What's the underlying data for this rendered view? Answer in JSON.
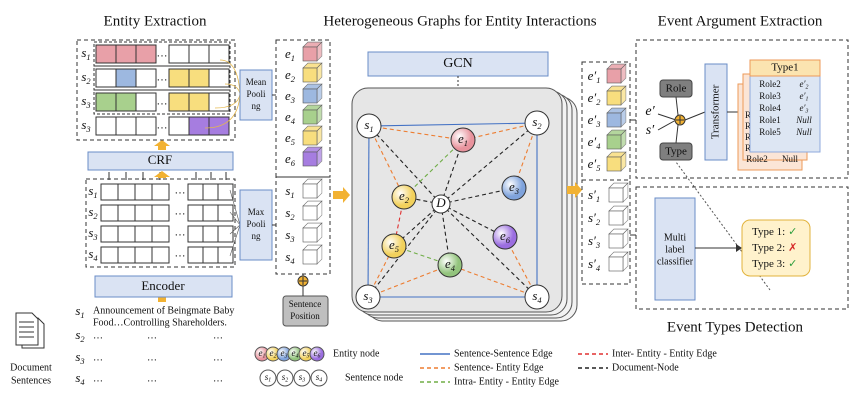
{
  "entity_extraction": {
    "title": "Entity Extraction",
    "pooled_rows": [
      {
        "v": "s",
        "i": "1"
      },
      {
        "v": "s",
        "i": "2"
      },
      {
        "v": "s",
        "i": "3"
      },
      {
        "v": "s",
        "i": "3"
      }
    ],
    "token_rows": [
      {
        "v": "s",
        "i": "1"
      },
      {
        "v": "s",
        "i": "2"
      },
      {
        "v": "s",
        "i": "3"
      },
      {
        "v": "s",
        "i": "4"
      }
    ],
    "ellipsis": "…",
    "crf": "CRF",
    "encoder": "Encoder",
    "mean_pooling": [
      "Mean",
      "Pooli",
      "ng"
    ],
    "max_pooling": [
      "Max",
      "Pooli",
      "ng"
    ]
  },
  "document": {
    "label": [
      "Document",
      "Sentences"
    ],
    "sentences": [
      {
        "id": {
          "v": "s",
          "i": "1"
        },
        "text": [
          "Announcement of Beingmate Baby",
          "Food…Controlling Shareholders."
        ]
      },
      {
        "id": {
          "v": "s",
          "i": "2"
        },
        "text": [
          "…",
          "…",
          "…"
        ]
      },
      {
        "id": {
          "v": "s",
          "i": "3"
        },
        "text": [
          "…",
          "…",
          "…"
        ]
      },
      {
        "id": {
          "v": "s",
          "i": "4"
        },
        "text": [
          "…",
          "…",
          "…"
        ]
      }
    ]
  },
  "embeddings": {
    "entities": [
      {
        "v": "e",
        "i": "1"
      },
      {
        "v": "e",
        "i": "2"
      },
      {
        "v": "e",
        "i": "3"
      },
      {
        "v": "e",
        "i": "4"
      },
      {
        "v": "e",
        "i": "5"
      },
      {
        "v": "e",
        "i": "6"
      }
    ],
    "sentences": [
      {
        "v": "s",
        "i": "1"
      },
      {
        "v": "s",
        "i": "2"
      },
      {
        "v": "s",
        "i": "3"
      },
      {
        "v": "s",
        "i": "4"
      }
    ],
    "sentence_position": [
      "Sentence",
      "Position"
    ]
  },
  "graph": {
    "title": "Heterogeneous Graphs for Entity Interactions",
    "gcn": "GCN",
    "nodes": [
      {
        "v": "s",
        "i": "1"
      },
      {
        "v": "s",
        "i": "2"
      },
      {
        "v": "s",
        "i": "3"
      },
      {
        "v": "s",
        "i": "4"
      },
      {
        "v": "e",
        "i": "1"
      },
      {
        "v": "e",
        "i": "2"
      },
      {
        "v": "e",
        "i": "3"
      },
      {
        "v": "e",
        "i": "4"
      },
      {
        "v": "e",
        "i": "5"
      },
      {
        "v": "e",
        "i": "6"
      },
      {
        "v": "D"
      }
    ]
  },
  "updated": {
    "entities": [
      {
        "v": "e′",
        "i": "1"
      },
      {
        "v": "e′",
        "i": "2"
      },
      {
        "v": "e′",
        "i": "3"
      },
      {
        "v": "e′",
        "i": "4"
      },
      {
        "v": "e′",
        "i": "5"
      }
    ],
    "sentences": [
      {
        "v": "s′",
        "i": "1"
      },
      {
        "v": "s′",
        "i": "2"
      },
      {
        "v": "s′",
        "i": "3"
      },
      {
        "v": "s′",
        "i": "4"
      }
    ]
  },
  "argument_extraction": {
    "title": "Event Argument Extraction",
    "role": "Role",
    "type": "Type",
    "entity": {
      "v": "e′"
    },
    "sentence": {
      "v": "s′"
    },
    "transformer": "Transformer",
    "table": {
      "header": "Type1",
      "roles": [
        "Role2",
        "Role3",
        "Role4",
        "Role1",
        "Role5"
      ],
      "args": [
        {
          "v": "e′",
          "i": "2"
        },
        {
          "v": "e′",
          "i": "1"
        },
        {
          "v": "e′",
          "i": "3"
        },
        {
          "v": "Null"
        },
        {
          "v": "Null"
        }
      ],
      "back_roles": [
        "R",
        "R",
        "R",
        "R"
      ],
      "last_row": [
        "Role2",
        "Null"
      ]
    }
  },
  "types_detection": {
    "title": "Event Types Detection",
    "classifier": [
      "Multi",
      "label",
      "classifier"
    ],
    "results": [
      {
        "label": "Type 1:",
        "mark": "✓",
        "color": "#2e9e3e"
      },
      {
        "label": "Type 2:",
        "mark": "✗",
        "color": "#d62828"
      },
      {
        "label": "Type 3:",
        "mark": "✓",
        "color": "#2e9e3e"
      }
    ]
  },
  "legend": {
    "entity_nodes": [
      {
        "v": "e",
        "i": "1"
      },
      {
        "v": "e",
        "i": "2"
      },
      {
        "v": "e",
        "i": "3"
      },
      {
        "v": "e",
        "i": "4"
      },
      {
        "v": "e",
        "i": "5"
      },
      {
        "v": "e",
        "i": "6"
      }
    ],
    "entity_node": "Entity node",
    "sentence_nodes": [
      {
        "v": "s",
        "i": "1"
      },
      {
        "v": "s",
        "i": "2"
      },
      {
        "v": "s",
        "i": "3"
      },
      {
        "v": "s",
        "i": "4"
      }
    ],
    "sentence_node": "Sentence node",
    "edges": [
      "Sentence-Sentence Edge",
      "Sentence- Entity Edge",
      "Intra- Entity - Entity Edge",
      "Inter- Entity - Entity Edge",
      "Document-Node"
    ]
  }
}
